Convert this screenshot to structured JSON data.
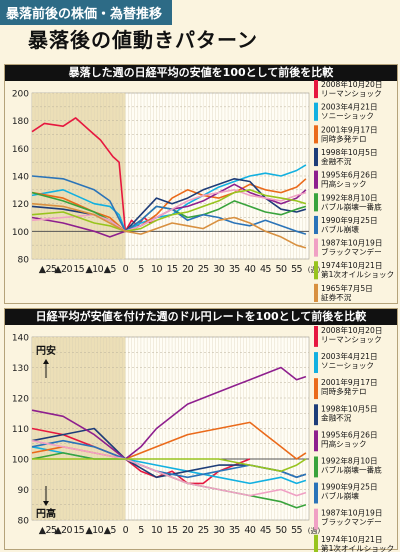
{
  "header": {
    "tag": "暴落前後の株価・為替推移",
    "title": "暴落後の値動きパターン"
  },
  "chart_data": [
    {
      "type": "line",
      "title": "暴落した週の日経平均の安値を100として前後を比較",
      "x_tick_labels": [
        "▲25",
        "▲20",
        "15",
        "▲10",
        "▲5",
        "0",
        "5",
        "10",
        "15",
        "20",
        "25",
        "30",
        "35",
        "40",
        "45",
        "50",
        "55"
      ],
      "x_unit": "(週)",
      "ylim": [
        80,
        200
      ],
      "y_ticks": [
        80,
        100,
        120,
        140,
        160,
        180,
        200
      ],
      "xlim": [
        -30,
        59
      ],
      "pre_crash_shaded": [
        -30,
        0
      ],
      "series": [
        {
          "name": "2008年10月20日 リーマンショック",
          "color": "#e6173f",
          "x": [
            -30,
            -26,
            -20,
            -16,
            -12,
            -10,
            -8,
            -6,
            -4,
            -2,
            0,
            2,
            4,
            6,
            8,
            10
          ],
          "values": [
            172,
            178,
            176,
            182,
            174,
            170,
            166,
            160,
            154,
            150,
            100,
            108,
            104,
            110,
            106,
            108
          ]
        },
        {
          "name": "2003年4月21日 ソニーショック",
          "color": "#12b0e0",
          "x": [
            -30,
            -20,
            -10,
            -5,
            -2,
            0,
            5,
            10,
            15,
            20,
            25,
            30,
            35,
            40,
            45,
            50,
            55,
            58
          ],
          "values": [
            126,
            130,
            120,
            118,
            112,
            100,
            106,
            110,
            112,
            120,
            126,
            132,
            136,
            140,
            142,
            140,
            144,
            148
          ]
        },
        {
          "name": "2001年9月17日 同時多発テロ",
          "color": "#ea6a1a",
          "x": [
            -30,
            -20,
            -10,
            -5,
            0,
            5,
            10,
            15,
            20,
            25,
            30,
            35,
            40,
            45,
            50,
            55,
            58
          ],
          "values": [
            128,
            124,
            114,
            110,
            100,
            104,
            112,
            124,
            130,
            126,
            124,
            128,
            134,
            130,
            128,
            132,
            138
          ]
        },
        {
          "name": "1998年10月5日 金融不況",
          "color": "#1e3d78",
          "x": [
            -30,
            -20,
            -10,
            -5,
            0,
            5,
            10,
            15,
            20,
            25,
            30,
            35,
            40,
            45,
            50,
            55,
            58
          ],
          "values": [
            118,
            116,
            112,
            108,
            100,
            112,
            124,
            120,
            124,
            130,
            134,
            138,
            136,
            124,
            116,
            114,
            116
          ]
        },
        {
          "name": "1995年6月26日 円高ショック",
          "color": "#8e1f8e",
          "x": [
            -30,
            -20,
            -10,
            -5,
            0,
            5,
            10,
            15,
            20,
            25,
            30,
            35,
            40,
            45,
            50,
            55,
            58
          ],
          "values": [
            110,
            106,
            100,
            96,
            100,
            104,
            110,
            116,
            118,
            122,
            128,
            134,
            128,
            124,
            120,
            124,
            130
          ]
        },
        {
          "name": "1992年8月10日 バブル崩壊一番底",
          "color": "#39a33c",
          "x": [
            -30,
            -20,
            -10,
            -5,
            0,
            5,
            10,
            15,
            20,
            25,
            30,
            35,
            40,
            45,
            50,
            55,
            58
          ],
          "values": [
            128,
            122,
            114,
            108,
            100,
            108,
            118,
            116,
            110,
            112,
            116,
            122,
            118,
            114,
            112,
            116,
            118
          ]
        },
        {
          "name": "1990年9月25日 バブル崩壊",
          "color": "#2b74b8",
          "x": [
            -30,
            -20,
            -10,
            -5,
            0,
            5,
            10,
            15,
            20,
            25,
            30,
            35,
            40,
            45,
            50,
            55,
            58
          ],
          "values": [
            140,
            138,
            130,
            122,
            100,
            108,
            118,
            116,
            108,
            112,
            110,
            106,
            104,
            108,
            104,
            100,
            98
          ]
        },
        {
          "name": "1987年10月19日 ブラックマンデー",
          "color": "#f0a0c4",
          "x": [
            -30,
            -20,
            -10,
            -5,
            0,
            5,
            10,
            15,
            20,
            25,
            30,
            35,
            40,
            45,
            50,
            55,
            58
          ],
          "values": [
            108,
            110,
            112,
            108,
            100,
            104,
            110,
            116,
            122,
            126,
            128,
            130,
            126,
            124,
            122,
            126,
            128
          ]
        },
        {
          "name": "1974年10月21日 第1次オイルショック",
          "color": "#98c41e",
          "x": [
            -30,
            -20,
            -10,
            -5,
            0,
            5,
            10,
            15,
            20,
            25,
            30,
            35,
            40,
            45,
            50,
            55,
            58
          ],
          "values": [
            112,
            114,
            106,
            104,
            100,
            102,
            108,
            112,
            114,
            118,
            122,
            128,
            130,
            126,
            124,
            122,
            120
          ]
        },
        {
          "name": "1965年7月5日 証券不況",
          "color": "#d89040",
          "x": [
            -30,
            -20,
            -10,
            -5,
            0,
            5,
            10,
            15,
            20,
            25,
            30,
            35,
            40,
            45,
            50,
            55,
            58
          ],
          "values": [
            120,
            118,
            112,
            106,
            100,
            98,
            102,
            106,
            104,
            102,
            108,
            110,
            106,
            100,
            96,
            90,
            88
          ]
        }
      ]
    },
    {
      "type": "line",
      "title": "日経平均が安値を付けた週のドル円レートを100として前後を比較",
      "x_tick_labels": [
        "▲25",
        "▲20",
        "15",
        "▲10",
        "▲5",
        "0",
        "5",
        "10",
        "15",
        "20",
        "25",
        "30",
        "35",
        "40",
        "45",
        "50",
        "55"
      ],
      "x_unit": "(週)",
      "ylim": [
        80,
        140
      ],
      "y_ticks": [
        80,
        90,
        100,
        110,
        120,
        130,
        140
      ],
      "xlim": [
        -30,
        59
      ],
      "pre_crash_shaded": [
        -30,
        0
      ],
      "annotations": {
        "up": "円安",
        "down": "円高"
      },
      "series": [
        {
          "name": "2008年10月20日 リーマンショック",
          "color": "#e6173f",
          "x": [
            -30,
            -20,
            -15,
            -10,
            -5,
            0,
            5,
            10,
            15,
            20,
            25,
            30,
            35,
            40
          ],
          "values": [
            110,
            108,
            106,
            104,
            102,
            100,
            96,
            94,
            96,
            92,
            92,
            96,
            98,
            100
          ]
        },
        {
          "name": "2003年4月21日 ソニーショック",
          "color": "#12b0e0",
          "x": [
            -30,
            -20,
            -10,
            0,
            10,
            20,
            30,
            40,
            50,
            55,
            58
          ],
          "values": [
            104,
            102,
            100,
            100,
            98,
            96,
            94,
            92,
            94,
            92,
            93
          ]
        },
        {
          "name": "2001年9月17日 同時多発テロ",
          "color": "#ea6a1a",
          "x": [
            -30,
            -20,
            -10,
            0,
            10,
            20,
            30,
            40,
            45,
            50,
            55,
            58
          ],
          "values": [
            102,
            104,
            102,
            100,
            104,
            108,
            110,
            112,
            108,
            104,
            100,
            102
          ]
        },
        {
          "name": "1998年10月5日 金融不況",
          "color": "#1e3d78",
          "x": [
            -30,
            -20,
            -10,
            0,
            10,
            20,
            30,
            40,
            50,
            55,
            58
          ],
          "values": [
            106,
            108,
            110,
            100,
            94,
            96,
            98,
            98,
            96,
            94,
            95
          ]
        },
        {
          "name": "1995年6月26日 円高ショック",
          "color": "#8e1f8e",
          "x": [
            -30,
            -20,
            -10,
            0,
            5,
            10,
            15,
            20,
            25,
            30,
            35,
            40,
            45,
            50,
            55,
            58
          ],
          "values": [
            116,
            114,
            108,
            100,
            104,
            110,
            114,
            118,
            120,
            122,
            124,
            126,
            128,
            130,
            126,
            127
          ]
        },
        {
          "name": "1992年8月10日 バブル崩壊一番底",
          "color": "#39a33c",
          "x": [
            -30,
            -20,
            -10,
            0,
            10,
            20,
            30,
            40,
            50,
            55,
            58
          ],
          "values": [
            100,
            102,
            100,
            100,
            96,
            92,
            90,
            88,
            86,
            84,
            85
          ]
        },
        {
          "name": "1990年9月25日 バブル崩壊",
          "color": "#2b74b8",
          "x": [
            -30,
            -20,
            -10,
            0,
            10,
            20,
            30,
            40,
            50,
            55,
            58
          ],
          "values": [
            104,
            106,
            104,
            100,
            96,
            94,
            96,
            98,
            96,
            94,
            95
          ]
        },
        {
          "name": "1987年10月19日 ブラックマンデー",
          "color": "#f0a0c4",
          "x": [
            -30,
            -20,
            -10,
            0,
            10,
            20,
            30,
            40,
            50,
            55,
            58
          ],
          "values": [
            106,
            104,
            102,
            100,
            96,
            92,
            90,
            88,
            90,
            88,
            89
          ]
        },
        {
          "name": "1974年10月21日 第1次オイルショック",
          "color": "#98c41e",
          "x": [
            -30,
            -20,
            -10,
            0,
            10,
            20,
            30,
            40,
            50,
            55,
            58
          ],
          "values": [
            100,
            100,
            100,
            100,
            100,
            100,
            100,
            98,
            96,
            98,
            100
          ]
        }
      ]
    }
  ]
}
